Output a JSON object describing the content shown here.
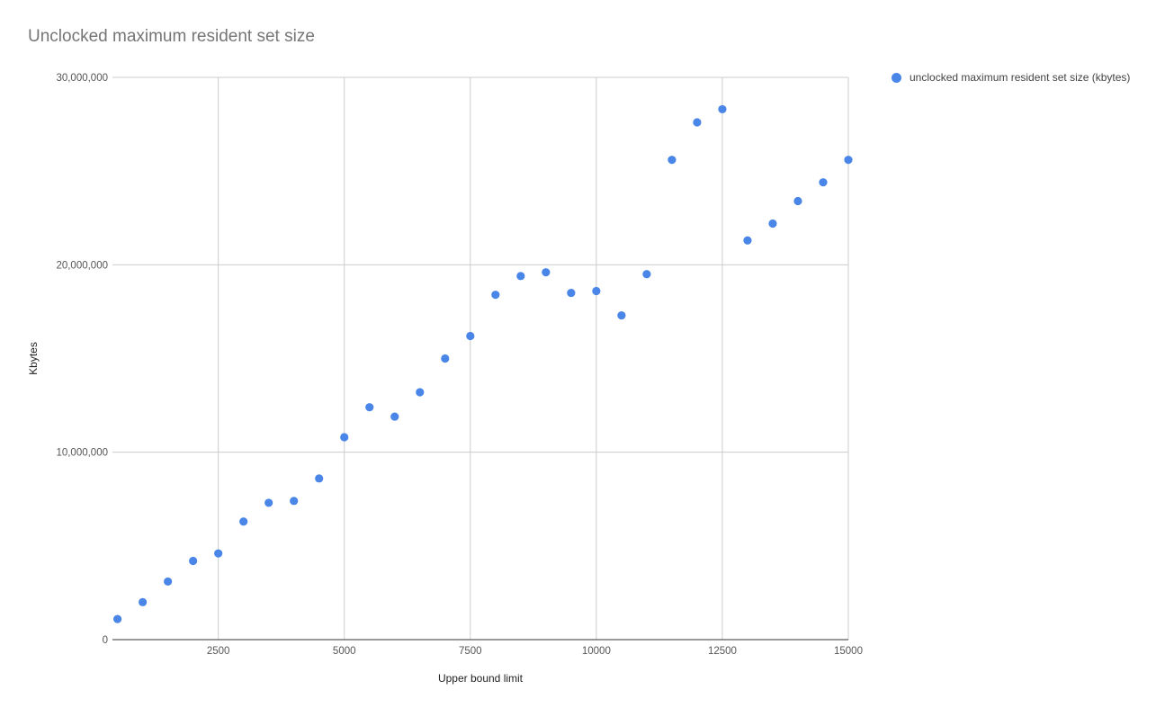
{
  "chart_data": {
    "type": "scatter",
    "title": "Unclocked maximum resident set size",
    "xlabel": "Upper bound limit",
    "ylabel": "Kbytes",
    "xlim": [
      400,
      15000
    ],
    "ylim": [
      0,
      30000000
    ],
    "x_ticks": [
      2500,
      5000,
      7500,
      10000,
      12500,
      15000
    ],
    "x_tick_labels": [
      "2500",
      "5000",
      "7500",
      "10000",
      "12500",
      "15000"
    ],
    "y_ticks": [
      0,
      10000000,
      20000000,
      30000000
    ],
    "y_tick_labels": [
      "0",
      "10,000,000",
      "20,000,000",
      "30,000,000"
    ],
    "grid": true,
    "legend_position": "right",
    "series": [
      {
        "name": "unclocked maximum resident set size (kbytes)",
        "color": "#4a86e8",
        "x": [
          500,
          1000,
          1500,
          2000,
          2500,
          3000,
          3500,
          4000,
          4500,
          5000,
          5500,
          6000,
          6500,
          7000,
          7500,
          8000,
          8500,
          9000,
          9500,
          10000,
          10500,
          11000,
          11500,
          12000,
          12500,
          13000,
          13500,
          14000,
          14500,
          15000
        ],
        "y": [
          1100000,
          2000000,
          3100000,
          4200000,
          4600000,
          6300000,
          7300000,
          7400000,
          8600000,
          10800000,
          12400000,
          11900000,
          13200000,
          15000000,
          16200000,
          18400000,
          19400000,
          19600000,
          18500000,
          18600000,
          17300000,
          19500000,
          25600000,
          27600000,
          28300000,
          21300000,
          22200000,
          23400000,
          24400000,
          25600000
        ]
      }
    ]
  }
}
